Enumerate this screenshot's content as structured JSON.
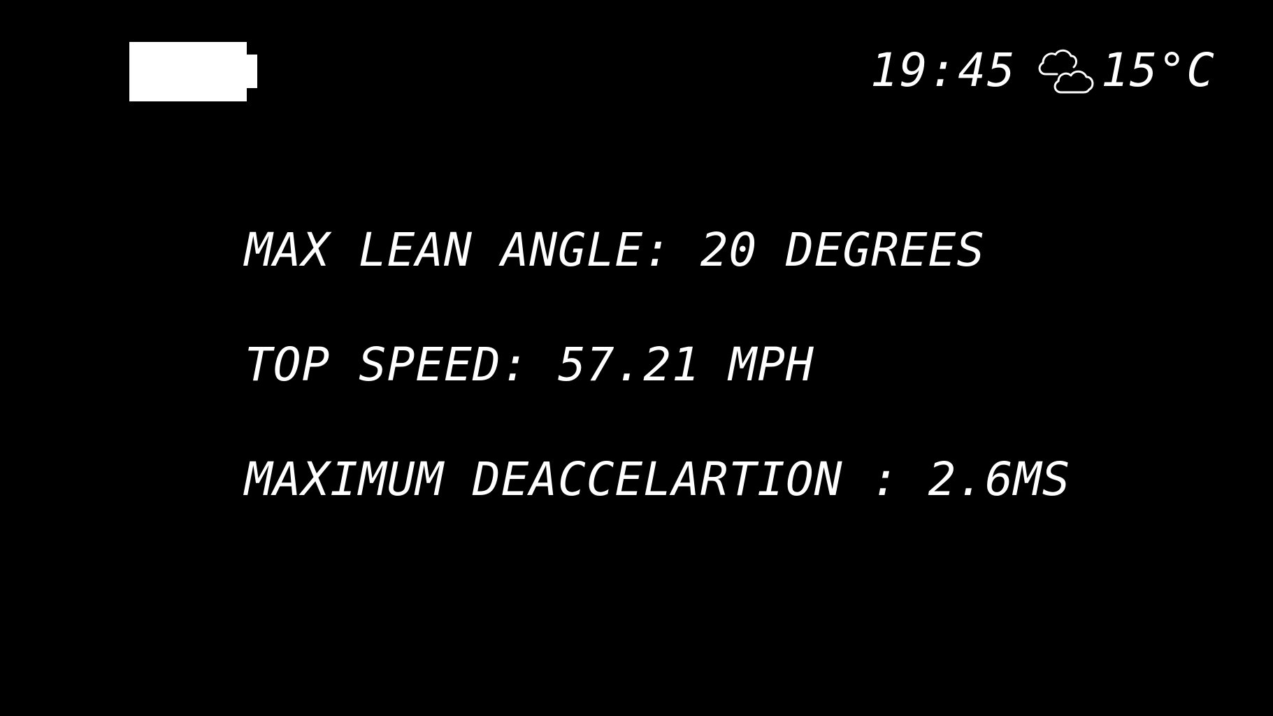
{
  "status_bar": {
    "battery_icon": "battery-full-icon",
    "time": "19:45",
    "weather_icon": "partly-cloudy-icon",
    "temperature": "15°C"
  },
  "stats": {
    "max_lean_angle": "MAX LEAN ANGLE: 20 DEGREES",
    "top_speed": "TOP SPEED: 57.21 MPH",
    "max_deceleration": "MAXIMUM DEACCELARTION : 2.6MS"
  },
  "colors": {
    "background": "#000000",
    "foreground": "#ffffff"
  }
}
